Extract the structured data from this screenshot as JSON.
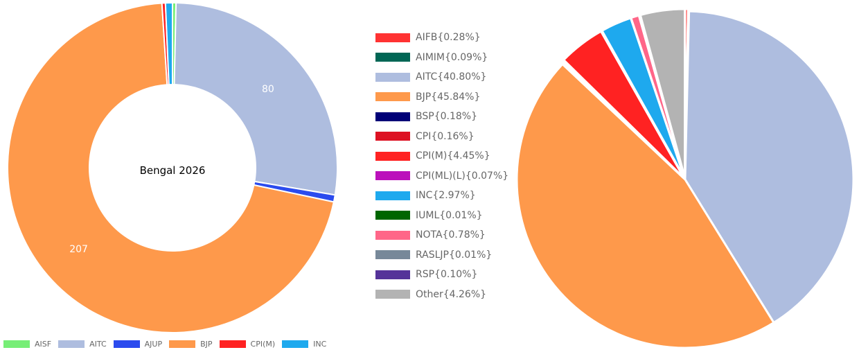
{
  "chart_data": [
    {
      "type": "pie",
      "variant": "doughnut",
      "center_label": "Bengal 2026",
      "categories": [
        "AISF",
        "AITC",
        "AJUP",
        "BJP",
        "CPI(M)",
        "INC"
      ],
      "values": [
        1,
        80,
        2,
        207,
        1,
        2
      ],
      "colors": [
        "#77ee77",
        "#aebddf",
        "#2b4bee",
        "#fe994b",
        "#ff2222",
        "#1ea9ee"
      ],
      "data_labels": [
        {
          "category": "AITC",
          "text": "80"
        },
        {
          "category": "BJP",
          "text": "207"
        }
      ],
      "legend_position": "bottom"
    },
    {
      "type": "pie",
      "categories": [
        "AIFB",
        "AIMIM",
        "AITC",
        "BJP",
        "BSP",
        "CPI",
        "CPI(M)",
        "CPI(ML)(L)",
        "INC",
        "IUML",
        "NOTA",
        "RASLJP",
        "RSP",
        "Other"
      ],
      "values": [
        0.28,
        0.09,
        40.8,
        45.84,
        0.18,
        0.16,
        4.45,
        0.07,
        2.97,
        0.01,
        0.78,
        0.01,
        0.1,
        4.26
      ],
      "legend_labels": [
        "AIFB{0.28%}",
        "AIMIM{0.09%}",
        "AITC{40.80%}",
        "BJP{45.84%}",
        "BSP{0.18%}",
        "CPI{0.16%}",
        "CPI(M){4.45%}",
        "CPI(ML)(L){0.07%}",
        "INC{2.97%}",
        "IUML{0.01%}",
        "NOTA{0.78%}",
        "RASLJP{0.01%}",
        "RSP{0.10%}",
        "Other{4.26%}"
      ],
      "colors": [
        "#ff3333",
        "#006655",
        "#aebddf",
        "#fe994b",
        "#000077",
        "#dd1122",
        "#ff2222",
        "#bb11bb",
        "#1ea9ee",
        "#006600",
        "#ff6688",
        "#778899",
        "#553399",
        "#b3b3b3"
      ],
      "legend_position": "left"
    }
  ]
}
